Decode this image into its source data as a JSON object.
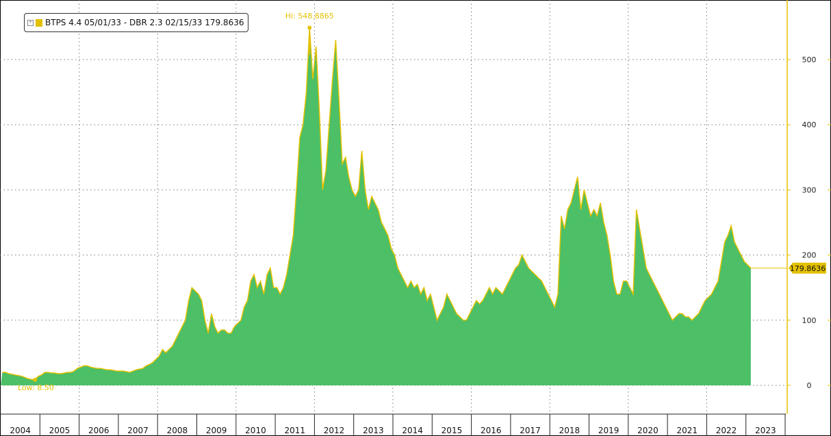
{
  "chart_data": {
    "type": "area",
    "legend": {
      "label": "BTPS 4.4 05/01/33 - DBR 2.3 02/15/33 179.8636",
      "position": "top-left"
    },
    "series_name": "BTPS 4.4 05/01/33 - DBR 2.3 02/15/33",
    "last_value": "179.8636",
    "hi_label": "Hi: 548.8865",
    "hi": {
      "date": "2011-11",
      "value": 548.8865
    },
    "low_label": "Low: 8.50",
    "low": {
      "date": "2004-11",
      "value": 8.5
    },
    "x_tick_labels": [
      "2004",
      "2005",
      "2006",
      "2007",
      "2008",
      "2009",
      "2010",
      "2011",
      "2012",
      "2013",
      "2014",
      "2015",
      "2016",
      "2017",
      "2018",
      "2019",
      "2020",
      "2021",
      "2022",
      "2023"
    ],
    "y_tick_labels": [
      "0",
      "100",
      "200",
      "300",
      "400",
      "500"
    ],
    "ylim": [
      0,
      580
    ],
    "grid": true,
    "y_axis_position": "right",
    "colors": {
      "fill": "#4cbf67",
      "line": "#e3c100",
      "annotation": "#e3c100"
    },
    "monthly_values": {
      "2004": [
        20,
        20,
        18,
        17,
        16,
        15,
        14,
        12,
        10,
        9,
        8.5,
        14
      ],
      "2005": [
        16,
        20,
        20,
        19,
        19,
        18,
        18,
        19,
        20,
        20,
        22,
        26
      ],
      "2006": [
        28,
        30,
        30,
        28,
        27,
        26,
        26,
        25,
        24,
        24,
        23,
        22
      ],
      "2007": [
        22,
        22,
        21,
        20,
        22,
        24,
        25,
        26,
        30,
        32,
        35,
        40
      ],
      "2008": [
        45,
        55,
        50,
        55,
        60,
        70,
        80,
        90,
        100,
        130,
        150,
        145
      ],
      "2009": [
        140,
        130,
        100,
        80,
        110,
        90,
        80,
        85,
        85,
        80,
        80,
        90
      ],
      "2010": [
        95,
        100,
        120,
        130,
        160,
        170,
        150,
        160,
        140,
        170,
        180,
        150
      ],
      "2011": [
        150,
        140,
        150,
        170,
        200,
        230,
        300,
        380,
        400,
        450,
        548.8865,
        470
      ],
      "2012": [
        520,
        420,
        300,
        330,
        400,
        470,
        530,
        440,
        340,
        350,
        320,
        300
      ],
      "2013": [
        290,
        300,
        360,
        300,
        270,
        290,
        280,
        270,
        250,
        240,
        230,
        210
      ],
      "2014": [
        200,
        180,
        170,
        160,
        150,
        160,
        150,
        155,
        140,
        150,
        130,
        140
      ],
      "2015": [
        120,
        100,
        110,
        120,
        140,
        130,
        120,
        110,
        105,
        100,
        100,
        110
      ],
      "2016": [
        120,
        130,
        125,
        130,
        140,
        150,
        140,
        150,
        145,
        140,
        150,
        160
      ],
      "2017": [
        170,
        180,
        185,
        200,
        190,
        180,
        175,
        170,
        165,
        160,
        150,
        140
      ],
      "2018": [
        130,
        120,
        140,
        260,
        240,
        270,
        280,
        300,
        320,
        270,
        300,
        280
      ],
      "2019": [
        260,
        270,
        260,
        280,
        250,
        230,
        200,
        160,
        140,
        140,
        160,
        160
      ],
      "2020": [
        150,
        140,
        270,
        240,
        210,
        180,
        170,
        160,
        150,
        140,
        130,
        120
      ],
      "2021": [
        110,
        100,
        105,
        110,
        110,
        105,
        105,
        100,
        105,
        110,
        120,
        130
      ],
      "2022": [
        135,
        140,
        150,
        160,
        190,
        220,
        230,
        245,
        220,
        210,
        200,
        190
      ],
      "2023": [
        185,
        179.8636
      ]
    }
  }
}
